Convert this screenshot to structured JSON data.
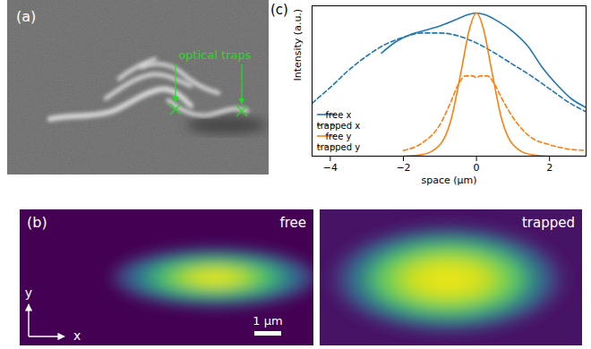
{
  "chart_data": {
    "type": "line",
    "title": "(c)",
    "x_label": "space (μm)",
    "y_label": "Intensity (a.u.)",
    "xlim": [
      -4.5,
      3.0
    ],
    "xticks": [
      -4,
      -2,
      0,
      2
    ],
    "ylim": [
      0,
      1.05
    ],
    "yticks": [],
    "tick_labels": "x",
    "grid": false,
    "legend": "lower left",
    "series": [
      {
        "name": "free x",
        "color": "#1f77b4",
        "line_style": "solid",
        "x": [
          -2.6,
          -2.2,
          -1.8,
          -1.4,
          -1.0,
          -0.6,
          -0.2,
          0,
          0.2,
          0.6,
          1.0,
          1.4,
          1.8,
          2.2,
          2.6,
          3.0
        ],
        "values": [
          0.72,
          0.8,
          0.85,
          0.88,
          0.91,
          0.95,
          0.99,
          1.0,
          0.99,
          0.94,
          0.87,
          0.77,
          0.62,
          0.5,
          0.4,
          0.34
        ]
      },
      {
        "name": "trapped x",
        "color": "#1f77b4",
        "line_style": "dashed",
        "x": [
          -4.5,
          -4.0,
          -3.5,
          -3.0,
          -2.5,
          -2.0,
          -1.5,
          -1.0,
          -0.5,
          0,
          0.5,
          1.0,
          1.5,
          2.0,
          2.5,
          3.0
        ],
        "values": [
          0.37,
          0.48,
          0.6,
          0.7,
          0.78,
          0.83,
          0.86,
          0.86,
          0.84,
          0.79,
          0.72,
          0.64,
          0.56,
          0.47,
          0.38,
          0.31
        ]
      },
      {
        "name": "free y",
        "color": "#ff7f0e",
        "line_style": "solid",
        "x": [
          -2.0,
          -1.5,
          -1.0,
          -0.7,
          -0.4,
          -0.2,
          0,
          0.2,
          0.4,
          0.7,
          1.0,
          1.5,
          2.0,
          2.5,
          3.0
        ],
        "values": [
          0.0,
          0.01,
          0.08,
          0.25,
          0.62,
          0.88,
          1.0,
          0.88,
          0.62,
          0.25,
          0.08,
          0.01,
          0.0,
          0.0,
          0.0
        ]
      },
      {
        "name": "trapped y",
        "color": "#ff7f0e",
        "line_style": "dashed",
        "x": [
          -2.0,
          -1.5,
          -1.0,
          -0.7,
          -0.5,
          -0.3,
          -0.1,
          0,
          0.1,
          0.3,
          0.5,
          0.7,
          1.0,
          1.5,
          2.0,
          2.5,
          3.0
        ],
        "values": [
          0.04,
          0.09,
          0.22,
          0.38,
          0.5,
          0.56,
          0.56,
          0.55,
          0.56,
          0.56,
          0.5,
          0.4,
          0.27,
          0.13,
          0.08,
          0.05,
          0.04
        ]
      }
    ]
  },
  "figure": {
    "panel_a": {
      "label": "(a)",
      "annotation": "optical traps"
    },
    "panel_b": {
      "label": "(b)",
      "images": [
        "free",
        "trapped"
      ],
      "axis_labels": [
        "y",
        "x"
      ],
      "scale_bar": "1 μm"
    }
  }
}
